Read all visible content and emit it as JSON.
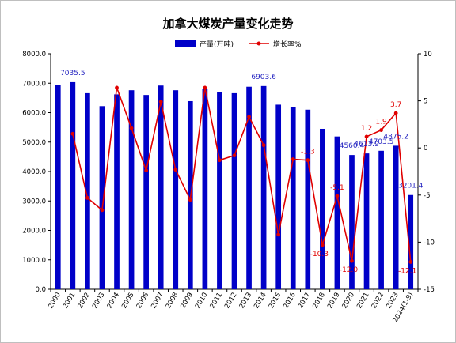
{
  "chart_data": {
    "type": "bar+line",
    "title": "加拿大煤炭产量变化走势",
    "categories": [
      "2000",
      "2001",
      "2002",
      "2003",
      "2004",
      "2005",
      "2006",
      "2007",
      "2008",
      "2009",
      "2010",
      "2011",
      "2012",
      "2013",
      "2014",
      "2015",
      "2016",
      "2017",
      "2018",
      "2019",
      "2020",
      "2021",
      "2022",
      "2023",
      "2024(1-9)"
    ],
    "series": [
      {
        "name": "产量(万吨)",
        "type": "bar",
        "axis": "left",
        "color": "#0000c8",
        "values": [
          6930,
          7035.5,
          6660,
          6220,
          6620,
          6760,
          6600,
          6920,
          6760,
          6390,
          6800,
          6710,
          6660,
          6880,
          6903.6,
          6270,
          6180,
          6100,
          5450,
          5190,
          4560.4,
          4613.9,
          4703.5,
          4875.2,
          3201.4
        ]
      },
      {
        "name": "增长率%",
        "type": "line",
        "axis": "right",
        "color": "#e00000",
        "values": [
          null,
          1.5,
          -5.3,
          -6.6,
          6.4,
          2.1,
          -2.4,
          4.9,
          -2.3,
          -5.5,
          6.4,
          -1.3,
          -0.8,
          3.3,
          0.3,
          -9.2,
          -1.2,
          -1.3,
          -10.3,
          -5.1,
          -12.0,
          1.2,
          1.9,
          3.7,
          -12.1
        ]
      }
    ],
    "bar_labels": [
      {
        "index": 1,
        "text": "7035.5"
      },
      {
        "index": 14,
        "text": "6903.6"
      },
      {
        "index": 20,
        "text": "4560.4"
      },
      {
        "index": 21,
        "text": "4613.9"
      },
      {
        "index": 22,
        "text": "4703.5"
      },
      {
        "index": 23,
        "text": "4875.2"
      },
      {
        "index": 24,
        "text": "3201.4"
      }
    ],
    "line_labels": [
      {
        "index": 17,
        "text": "-1.3"
      },
      {
        "index": 18,
        "text": "-10.3"
      },
      {
        "index": 19,
        "text": "-5.1"
      },
      {
        "index": 20,
        "text": "-12.0"
      },
      {
        "index": 21,
        "text": "1.2"
      },
      {
        "index": 22,
        "text": "1.9"
      },
      {
        "index": 23,
        "text": "3.7"
      },
      {
        "index": 24,
        "text": "-12.1"
      }
    ],
    "y_left": {
      "min": 0,
      "max": 8000,
      "step": 1000,
      "tick_labels": [
        "0.0",
        "1000.0",
        "2000.0",
        "3000.0",
        "4000.0",
        "5000.0",
        "6000.0",
        "7000.0",
        "8000.0"
      ]
    },
    "y_right": {
      "min": -15,
      "max": 10,
      "step": 5,
      "tick_labels": [
        "-15",
        "-10",
        "-5",
        "0",
        "5",
        "10"
      ]
    },
    "legend_position": "top-center",
    "grid": false
  }
}
